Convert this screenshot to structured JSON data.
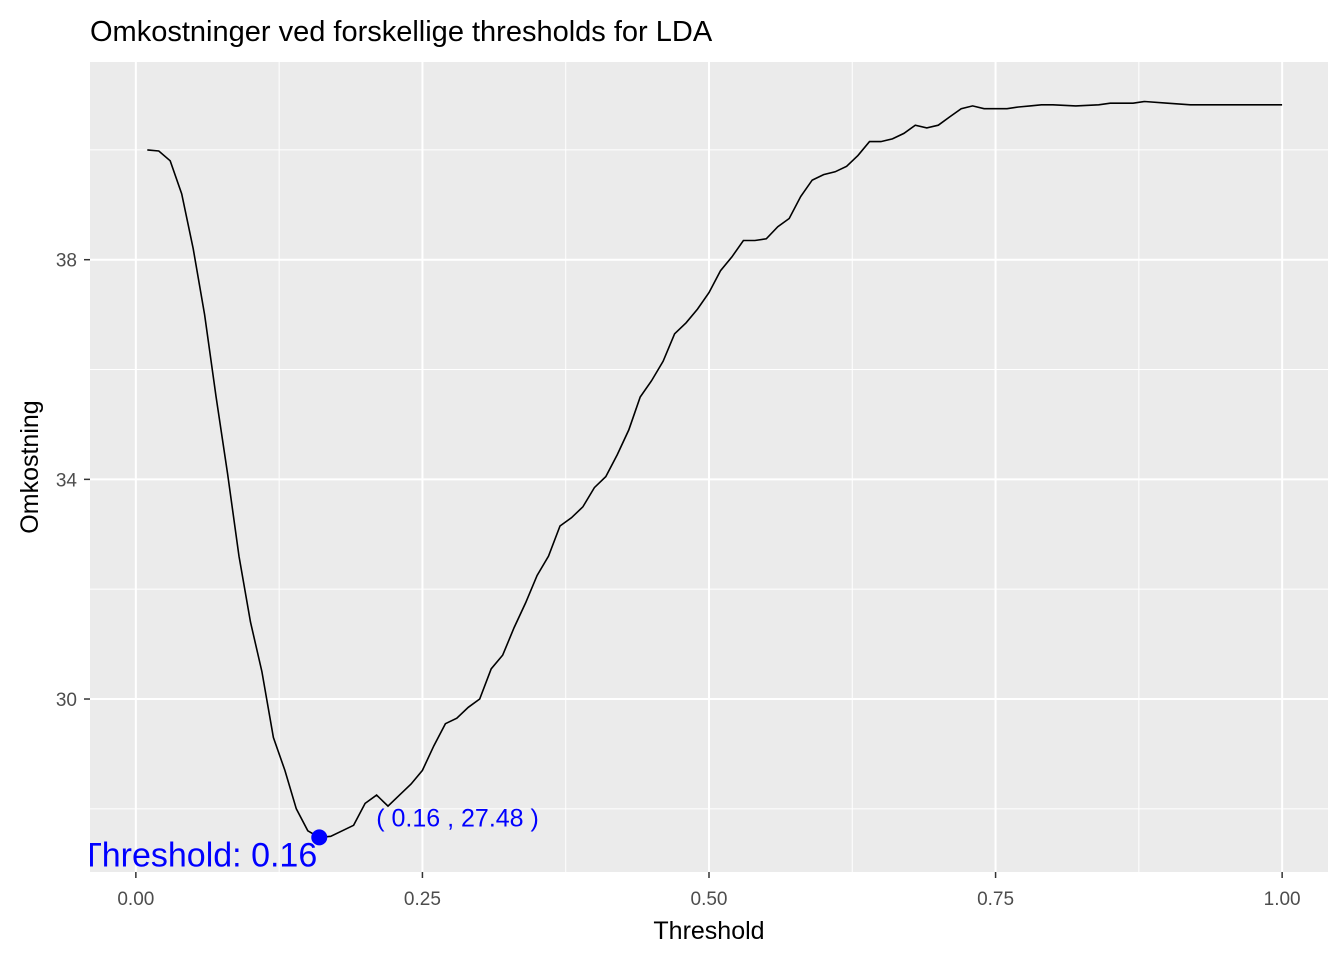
{
  "chart_data": {
    "type": "line",
    "title": "Omkostninger ved forskellige thresholds for LDA",
    "xlabel": "Threshold",
    "ylabel": "Omkostning",
    "xlim": [
      -0.04,
      1.04
    ],
    "ylim": [
      26.85,
      41.6
    ],
    "x_ticks": [
      0.0,
      0.25,
      0.5,
      0.75,
      1.0
    ],
    "x_tick_labels": [
      "0.00",
      "0.25",
      "0.50",
      "0.75",
      "1.00"
    ],
    "y_ticks": [
      30,
      34,
      38
    ],
    "y_tick_labels": [
      "30",
      "34",
      "38"
    ],
    "x_minor_ticks": [
      0.125,
      0.375,
      0.625,
      0.875
    ],
    "y_minor_ticks": [
      28,
      32,
      36,
      40
    ],
    "grid": true,
    "line_color": "#000000",
    "annotation_color": "#0000ff",
    "series": [
      {
        "x": [
          0.01,
          0.02,
          0.03,
          0.04,
          0.05,
          0.06,
          0.07,
          0.08,
          0.09,
          0.1,
          0.11,
          0.12,
          0.13,
          0.14,
          0.15,
          0.16,
          0.17,
          0.18,
          0.19,
          0.2,
          0.21,
          0.22,
          0.23,
          0.24,
          0.25,
          0.26,
          0.27,
          0.28,
          0.29,
          0.3,
          0.31,
          0.32,
          0.33,
          0.34,
          0.35,
          0.36,
          0.37,
          0.38,
          0.39,
          0.4,
          0.41,
          0.42,
          0.43,
          0.44,
          0.45,
          0.46,
          0.47,
          0.48,
          0.49,
          0.5,
          0.51,
          0.52,
          0.53,
          0.54,
          0.55,
          0.56,
          0.57,
          0.58,
          0.59,
          0.6,
          0.61,
          0.62,
          0.63,
          0.64,
          0.65,
          0.66,
          0.67,
          0.68,
          0.69,
          0.7,
          0.71,
          0.72,
          0.73,
          0.74,
          0.75,
          0.76,
          0.77,
          0.78,
          0.79,
          0.8,
          0.82,
          0.84,
          0.85,
          0.86,
          0.87,
          0.88,
          0.9,
          0.92,
          0.95,
          0.98,
          1.0
        ],
        "y": [
          40.0,
          39.98,
          39.8,
          39.2,
          38.2,
          37.0,
          35.5,
          34.1,
          32.6,
          31.4,
          30.5,
          29.3,
          28.7,
          28.0,
          27.6,
          27.48,
          27.5,
          27.6,
          27.7,
          28.1,
          28.25,
          28.05,
          28.25,
          28.45,
          28.7,
          29.15,
          29.55,
          29.65,
          29.85,
          30.0,
          30.55,
          30.8,
          31.3,
          31.75,
          32.25,
          32.6,
          33.15,
          33.3,
          33.5,
          33.85,
          34.05,
          34.45,
          34.9,
          35.5,
          35.8,
          36.15,
          36.65,
          36.85,
          37.1,
          37.4,
          37.8,
          38.05,
          38.35,
          38.35,
          38.38,
          38.6,
          38.75,
          39.15,
          39.45,
          39.55,
          39.6,
          39.7,
          39.9,
          40.15,
          40.15,
          40.2,
          40.3,
          40.45,
          40.4,
          40.45,
          40.6,
          40.75,
          40.8,
          40.75,
          40.75,
          40.75,
          40.78,
          40.8,
          40.82,
          40.82,
          40.8,
          40.82,
          40.85,
          40.85,
          40.85,
          40.88,
          40.85,
          40.82,
          40.82,
          40.82,
          40.82
        ]
      }
    ],
    "highlight_point": {
      "x": 0.16,
      "y": 27.48
    },
    "annotations": {
      "point_label": "( 0.16 , 27.48 )",
      "threshold_label": "Threshold: 0.16"
    }
  }
}
